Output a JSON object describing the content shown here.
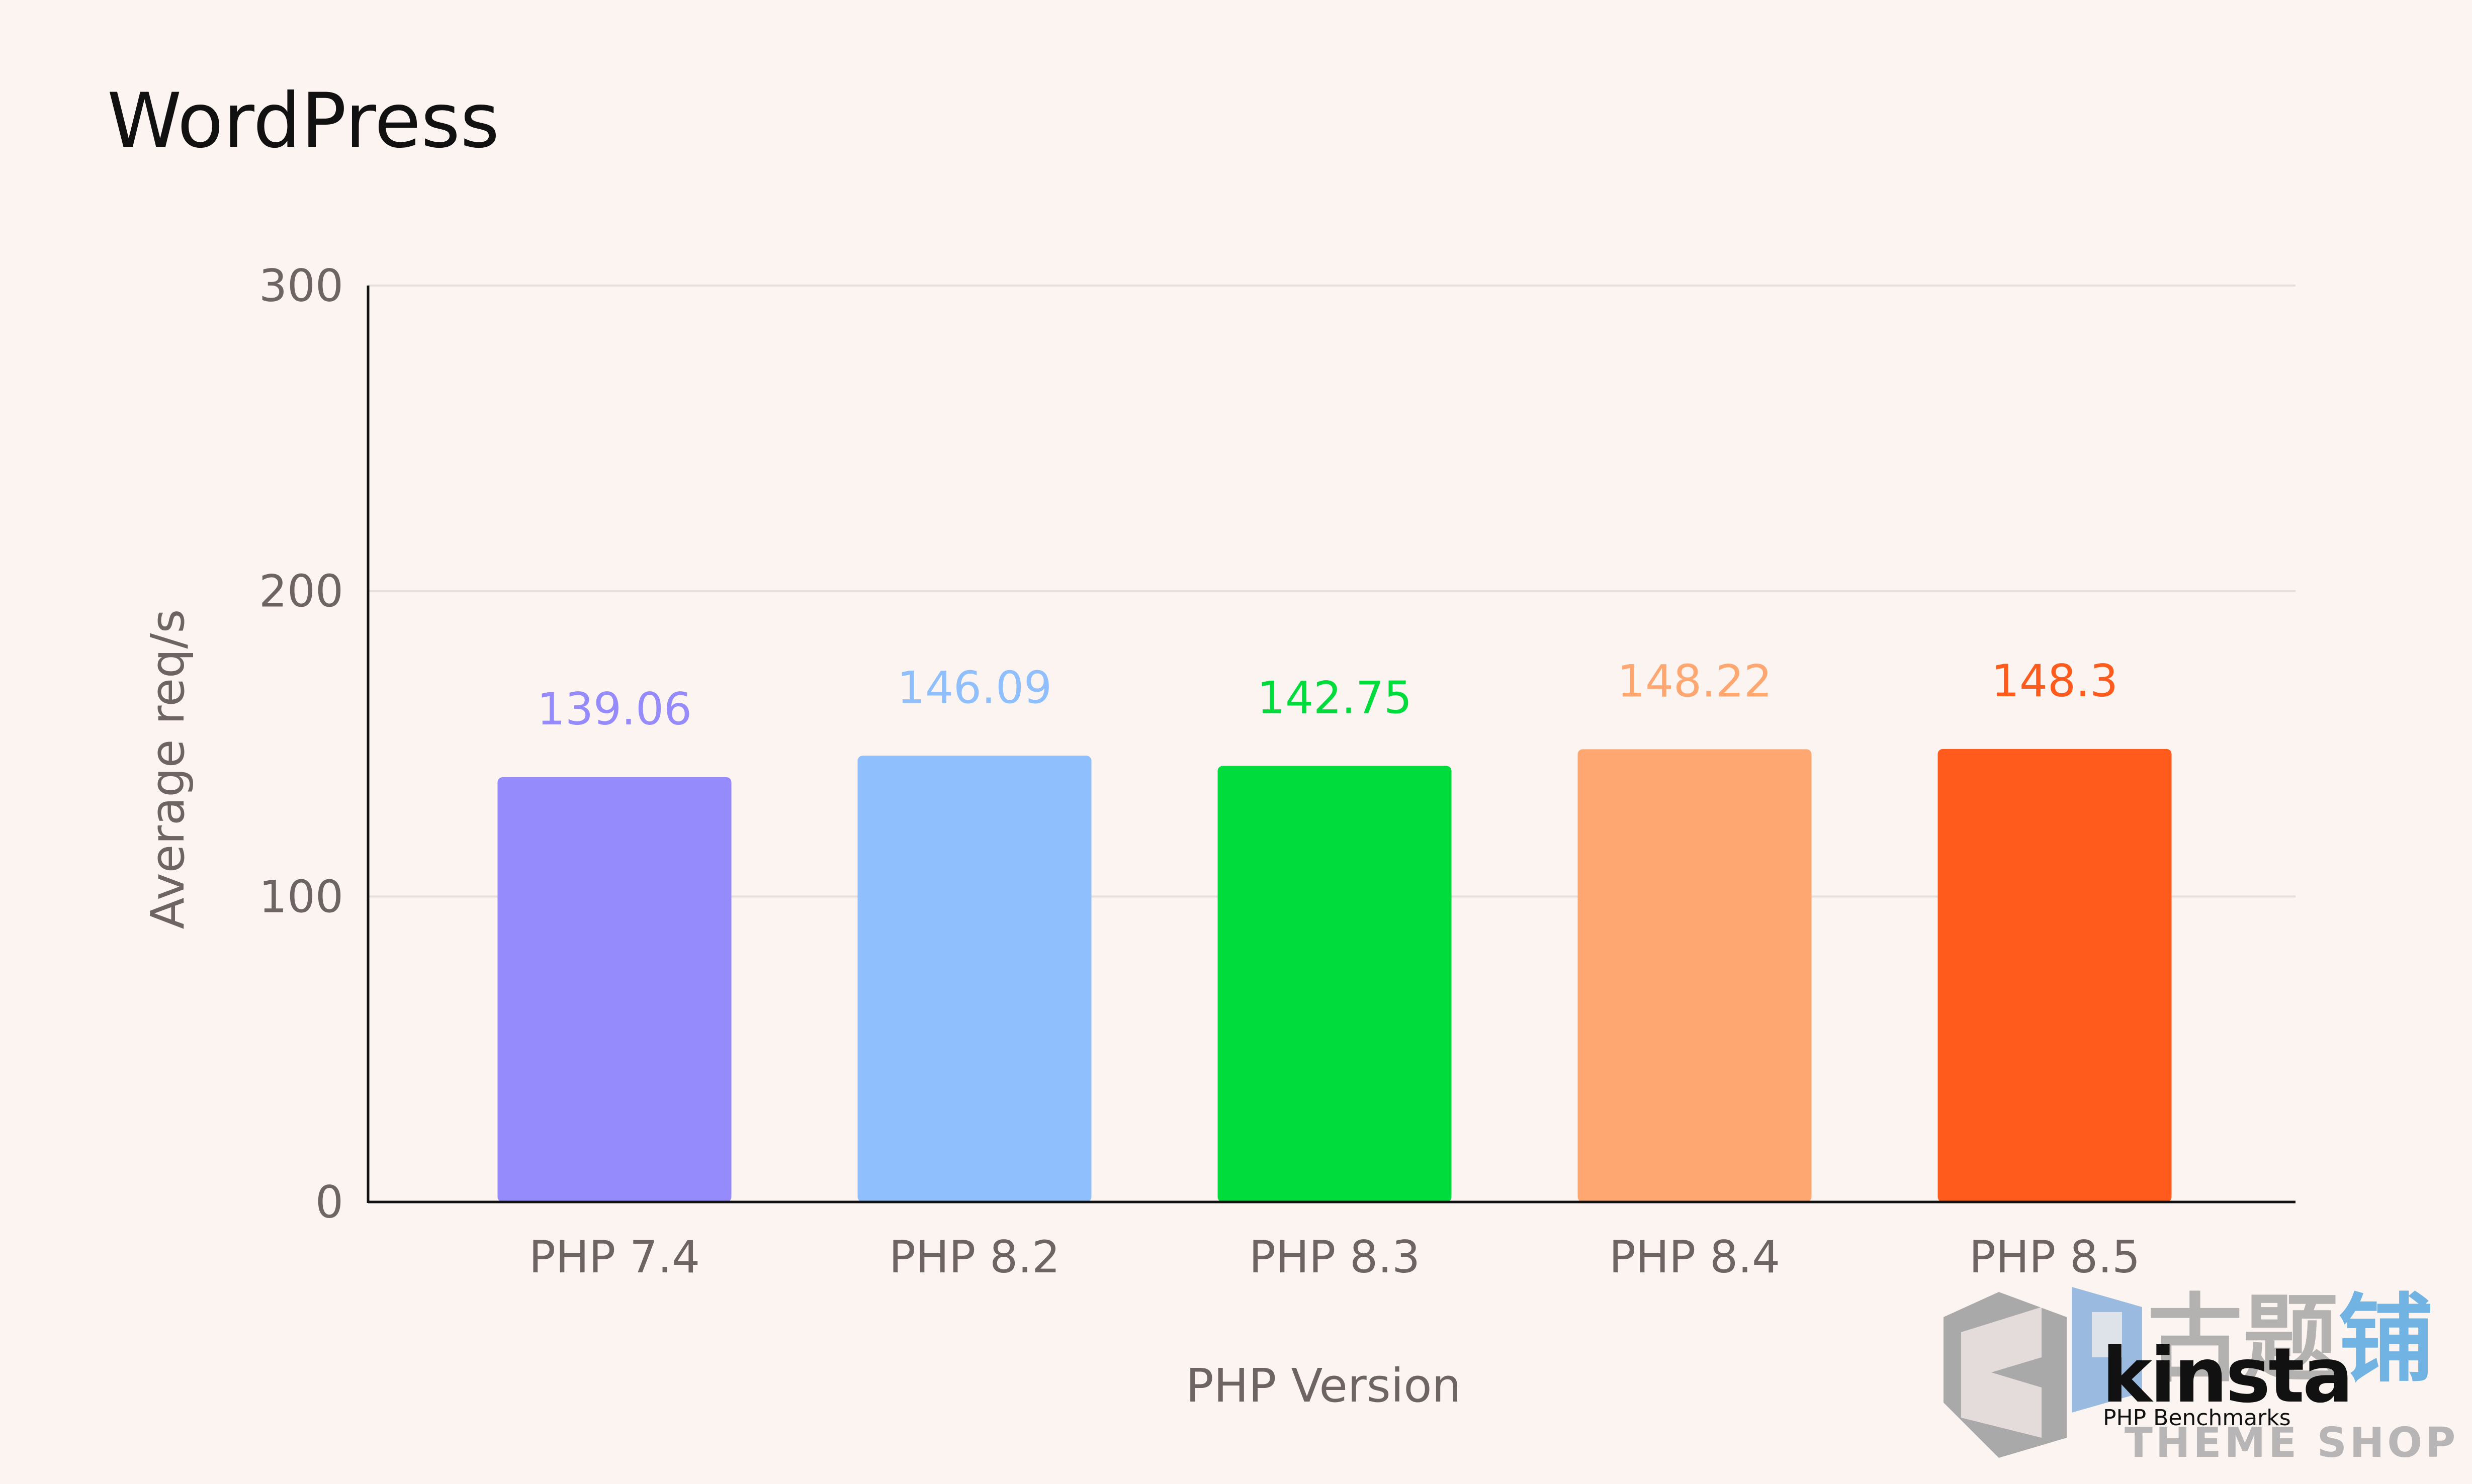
{
  "chart_data": {
    "type": "bar",
    "title": "WordPress",
    "xlabel": "PHP Version",
    "ylabel": "Average req/s",
    "ylim": [
      0,
      300
    ],
    "yticks": [
      0,
      100,
      200,
      300
    ],
    "grid": true,
    "categories": [
      "PHP 7.4",
      "PHP 8.2",
      "PHP 8.3",
      "PHP 8.4",
      "PHP 8.5"
    ],
    "values": [
      139.06,
      146.09,
      142.75,
      148.22,
      148.3
    ],
    "data_labels": [
      "139.06",
      "146.09",
      "142.75",
      "148.22",
      "148.3"
    ],
    "colors": [
      "#958bfd",
      "#8fc0fd",
      "#00dc3c",
      "#ffa771",
      "#ff5b1c"
    ]
  },
  "brand": {
    "wordmark": "kinsta",
    "subtitle": "PHP Benchmarks"
  },
  "watermark": {
    "text": "THEME SHOP",
    "glyphs": "古题铺",
    "color": "#8f9092",
    "accent": "#3b9be0",
    "icon": "zp-logo-icon"
  }
}
